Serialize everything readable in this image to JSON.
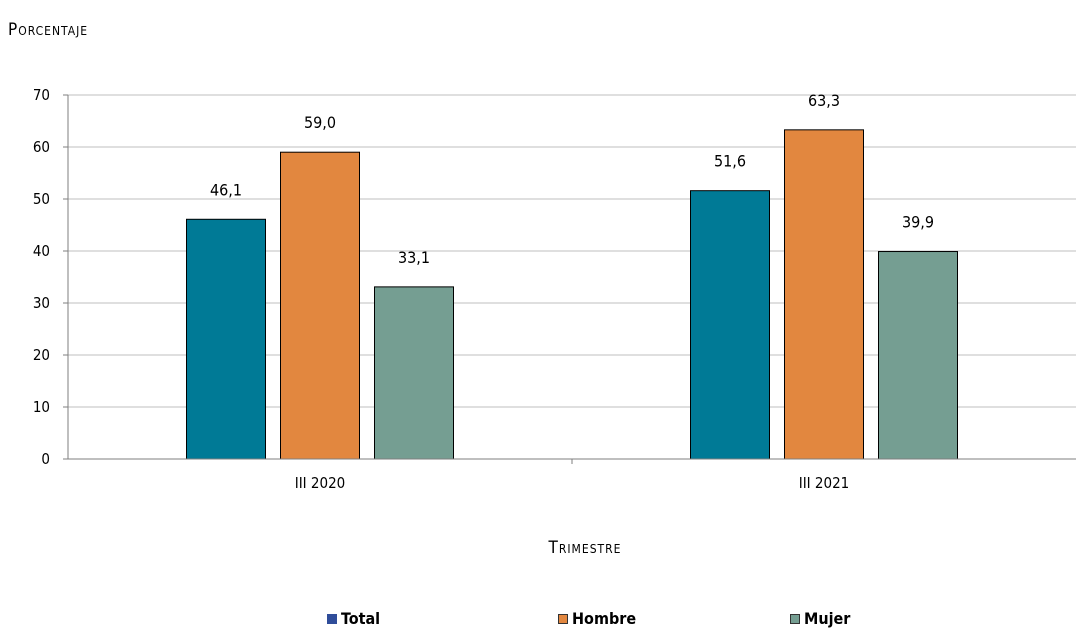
{
  "chart_data": {
    "type": "bar",
    "ylabel": "Porcentaje",
    "xlabel": "Trimestre",
    "categories": [
      "III 2020",
      "III 2021"
    ],
    "series": [
      {
        "name": "Total",
        "values": [
          46.1,
          51.6
        ],
        "labels": [
          "46,1",
          "51,6"
        ],
        "color": "#007A96"
      },
      {
        "name": "Hombre",
        "values": [
          59.0,
          63.3
        ],
        "labels": [
          "59,0",
          "63,3"
        ],
        "color": "#E2873F"
      },
      {
        "name": "Mujer",
        "values": [
          33.1,
          39.9
        ],
        "labels": [
          "33,1",
          "39,9"
        ],
        "color": "#759E92"
      }
    ],
    "ylim": [
      0,
      70
    ],
    "yticks": [
      0,
      10,
      20,
      30,
      40,
      50,
      60,
      70
    ],
    "grid": true,
    "legend_position": "bottom",
    "legend_swatch_colors": [
      "#2F4D9A",
      "#E2873F",
      "#759E92"
    ]
  }
}
